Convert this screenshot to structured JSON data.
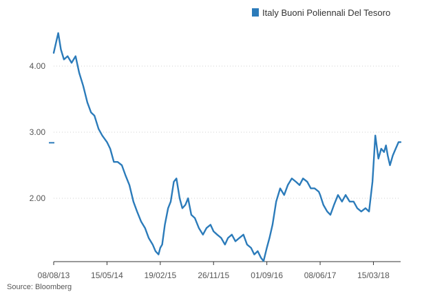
{
  "chart_data": {
    "type": "line",
    "title": "",
    "xlabel": "",
    "ylabel": "",
    "legend": {
      "position": "top-right"
    },
    "series": [
      {
        "name": "Italy Buoni Poliennali Del Tesoro",
        "color": "#2b7bba",
        "x": [
          "2013-08-08",
          "2013-08-20",
          "2013-09-01",
          "2013-09-15",
          "2013-10-01",
          "2013-10-20",
          "2013-11-10",
          "2013-12-01",
          "2013-12-20",
          "2014-01-10",
          "2014-02-01",
          "2014-02-20",
          "2014-03-10",
          "2014-04-01",
          "2014-04-20",
          "2014-05-15",
          "2014-06-01",
          "2014-06-20",
          "2014-07-10",
          "2014-08-01",
          "2014-08-20",
          "2014-09-10",
          "2014-10-01",
          "2014-10-20",
          "2014-11-10",
          "2014-12-01",
          "2014-12-20",
          "2015-01-10",
          "2015-01-25",
          "2015-02-10",
          "2015-02-19",
          "2015-03-01",
          "2015-03-15",
          "2015-04-01",
          "2015-04-15",
          "2015-05-01",
          "2015-05-15",
          "2015-06-01",
          "2015-06-15",
          "2015-07-01",
          "2015-07-15",
          "2015-08-01",
          "2015-08-20",
          "2015-09-10",
          "2015-10-01",
          "2015-10-20",
          "2015-11-10",
          "2015-11-26",
          "2015-12-15",
          "2016-01-05",
          "2016-01-25",
          "2016-02-10",
          "2016-03-01",
          "2016-03-20",
          "2016-04-10",
          "2016-05-01",
          "2016-05-20",
          "2016-06-10",
          "2016-06-27",
          "2016-07-15",
          "2016-08-01",
          "2016-08-15",
          "2016-09-01",
          "2016-09-15",
          "2016-10-01",
          "2016-10-20",
          "2016-11-10",
          "2016-12-01",
          "2016-12-20",
          "2017-01-10",
          "2017-02-01",
          "2017-02-20",
          "2017-03-10",
          "2017-04-01",
          "2017-04-20",
          "2017-05-10",
          "2017-06-01",
          "2017-06-08",
          "2017-06-25",
          "2017-07-15",
          "2017-08-01",
          "2017-08-20",
          "2017-09-10",
          "2017-10-01",
          "2017-10-20",
          "2017-11-10",
          "2017-12-01",
          "2017-12-20",
          "2018-01-10",
          "2018-02-01",
          "2018-02-20",
          "2018-03-10",
          "2018-03-25",
          "2018-04-10",
          "2018-04-25",
          "2018-05-10",
          "2018-05-20",
          "2018-05-29",
          "2018-06-10",
          "2018-06-25",
          "2018-07-10",
          "2018-07-25",
          "2018-08-05"
        ],
        "values": [
          4.2,
          4.35,
          4.5,
          4.25,
          4.1,
          4.15,
          4.05,
          4.15,
          3.9,
          3.7,
          3.45,
          3.3,
          3.25,
          3.05,
          2.95,
          2.85,
          2.75,
          2.55,
          2.55,
          2.5,
          2.35,
          2.2,
          1.95,
          1.8,
          1.65,
          1.55,
          1.4,
          1.3,
          1.2,
          1.15,
          1.25,
          1.3,
          1.6,
          1.85,
          1.95,
          2.25,
          2.3,
          2.0,
          1.85,
          1.9,
          2.0,
          1.75,
          1.7,
          1.55,
          1.45,
          1.55,
          1.6,
          1.5,
          1.45,
          1.4,
          1.3,
          1.4,
          1.45,
          1.35,
          1.4,
          1.45,
          1.3,
          1.25,
          1.15,
          1.2,
          1.1,
          1.05,
          1.25,
          1.4,
          1.6,
          1.95,
          2.15,
          2.05,
          2.2,
          2.3,
          2.25,
          2.2,
          2.3,
          2.25,
          2.15,
          2.15,
          2.1,
          2.05,
          1.9,
          1.8,
          1.75,
          1.9,
          2.05,
          1.95,
          2.05,
          1.95,
          1.95,
          1.85,
          1.8,
          1.85,
          1.8,
          2.25,
          2.95,
          2.6,
          2.75,
          2.7,
          2.8,
          2.65,
          2.5,
          2.65,
          2.75,
          2.85,
          2.85
        ]
      }
    ],
    "x_ticks": [
      "08/08/13",
      "15/05/14",
      "19/02/15",
      "26/11/15",
      "01/09/16",
      "08/06/17",
      "15/03/18"
    ],
    "y_ticks": [
      "4.00",
      "3.00",
      "2.00"
    ],
    "xlim": [
      "2013-08-08",
      "2018-08-05"
    ],
    "ylim": [
      1.0,
      4.6
    ],
    "grid": "horizontal dotted",
    "marker": {
      "y": 2.84
    }
  },
  "source": "Source: Bloomberg"
}
